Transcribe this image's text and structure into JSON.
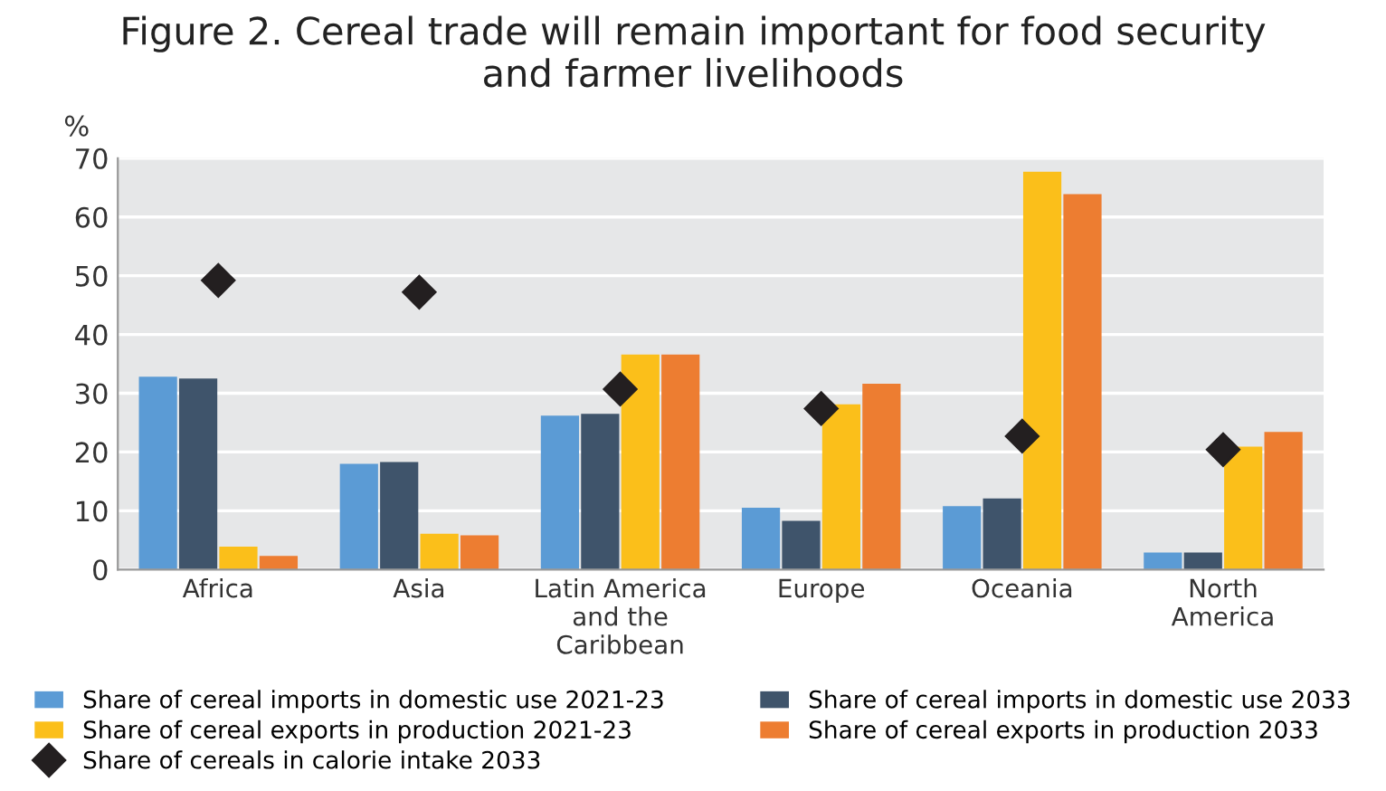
{
  "chart_data": {
    "type": "bar",
    "title": "Figure 2. Cereal trade will remain important for food security\nand farmer livelihoods",
    "ylabel": "%",
    "categories": [
      "Africa",
      "Asia",
      "Latin America\nand the\nCaribbean",
      "Europe",
      "Oceania",
      "North\nAmerica"
    ],
    "series": [
      {
        "name": "Share of cereal imports in domestic use 2021-23",
        "color": "#5b9bd5",
        "values": [
          32.8,
          18.0,
          26.2,
          10.5,
          10.8,
          2.9
        ]
      },
      {
        "name": "Share of cereal imports in domestic use 2033",
        "color": "#3f546b",
        "values": [
          32.5,
          18.3,
          26.5,
          8.3,
          12.1,
          2.9
        ]
      },
      {
        "name": "Share of cereal exports in production 2021-23",
        "color": "#fbbf1a",
        "values": [
          3.9,
          6.1,
          36.6,
          28.1,
          67.7,
          20.9
        ]
      },
      {
        "name": "Share of cereal exports in production 2033",
        "color": "#ed7d31",
        "values": [
          2.3,
          5.8,
          36.6,
          31.6,
          63.9,
          23.4
        ]
      },
      {
        "name": "Share of cereals in calorie intake 2033",
        "color": "#231f20",
        "type": "scatter",
        "marker": "diamond",
        "values": [
          49.2,
          47.2,
          30.7,
          27.4,
          22.7,
          20.4
        ]
      }
    ],
    "ylim": [
      0,
      70
    ],
    "yticks": [
      0,
      10,
      20,
      30,
      40,
      50,
      60,
      70
    ],
    "grid": "y",
    "legend": "bottom"
  }
}
